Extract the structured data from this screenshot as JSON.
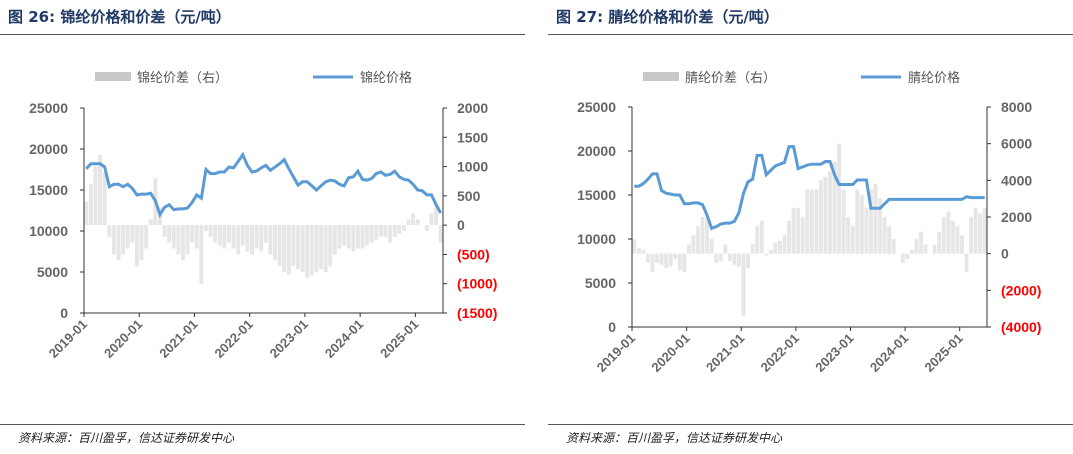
{
  "chart_data": [
    {
      "type": "bar+line",
      "title": "图 26:  锦纶价格和价差（元/吨）",
      "source": "资料来源：百川盈孚，信达证券研发中心",
      "legend": {
        "position": "top",
        "items": [
          {
            "name": "锦纶价差（右）",
            "color": "#c8c8c8",
            "kind": "bar"
          },
          {
            "name": "锦纶价格",
            "color": "#5b9bd5",
            "kind": "line"
          }
        ]
      },
      "x_ticks": [
        "2019-01",
        "2020-01",
        "2021-01",
        "2022-01",
        "2023-01",
        "2024-01",
        "2025-01"
      ],
      "x_start": "2019-01",
      "frequency": "monthly",
      "left_axis": {
        "ylim": [
          0,
          25000
        ],
        "ticks": [
          "25000",
          "20000",
          "15000",
          "10000",
          "5000",
          "0"
        ]
      },
      "right_axis": {
        "ylim": [
          -1500,
          2000
        ],
        "ticks": [
          "2000",
          "1500",
          "1000",
          "500",
          "0",
          "(500)",
          "(1000)",
          "(1500)"
        ],
        "negative_color": "#ff0000"
      },
      "series": [
        {
          "name": "锦纶价格",
          "axis": "left",
          "values": [
            17600,
            18200,
            18200,
            18200,
            17800,
            15400,
            15700,
            15700,
            15400,
            15700,
            15200,
            14400,
            14500,
            14500,
            14600,
            13700,
            12000,
            12900,
            13200,
            12600,
            12700,
            12700,
            12800,
            13500,
            14400,
            14000,
            17500,
            17000,
            17000,
            17200,
            17200,
            17800,
            17700,
            18500,
            19300,
            18000,
            17200,
            17300,
            17700,
            18000,
            17400,
            17800,
            18200,
            18700,
            17600,
            16600,
            15600,
            16000,
            16000,
            15500,
            15000,
            15500,
            16000,
            16200,
            16100,
            15700,
            15500,
            16500,
            16600,
            17300,
            16300,
            16200,
            16400,
            17000,
            17200,
            16800,
            16900,
            17300,
            16600,
            16300,
            16200,
            15700,
            15000,
            14900,
            14400,
            14400,
            13200,
            12200
          ]
        },
        {
          "name": "锦纶价差（右）",
          "axis": "right",
          "values": [
            400,
            700,
            1000,
            1200,
            900,
            -200,
            -500,
            -600,
            -500,
            -400,
            -300,
            -700,
            -600,
            -400,
            100,
            800,
            300,
            -200,
            -300,
            -400,
            -500,
            -600,
            -500,
            -300,
            -400,
            -1000,
            -100,
            -200,
            -300,
            -350,
            -400,
            -300,
            -400,
            -500,
            -350,
            -450,
            -500,
            -400,
            -450,
            -300,
            -500,
            -600,
            -700,
            -800,
            -850,
            -700,
            -750,
            -800,
            -900,
            -850,
            -800,
            -750,
            -800,
            -700,
            -500,
            -400,
            -350,
            -400,
            -450,
            -400,
            -400,
            -350,
            -300,
            -250,
            -200,
            -200,
            -300,
            -200,
            -150,
            -100,
            100,
            200,
            100,
            0,
            -100,
            200,
            300,
            -300
          ]
        }
      ]
    },
    {
      "type": "bar+line",
      "title": "图 27:  腈纶价格和价差（元/吨）",
      "source": "资料来源：百川盈孚，信达证券研发中心",
      "legend": {
        "position": "top",
        "items": [
          {
            "name": "腈纶价差（右）",
            "color": "#c8c8c8",
            "kind": "bar"
          },
          {
            "name": "腈纶价格",
            "color": "#5b9bd5",
            "kind": "line"
          }
        ]
      },
      "x_ticks": [
        "2019-01",
        "2020-01",
        "2021-01",
        "2022-01",
        "2023-01",
        "2024-01",
        "2025-01"
      ],
      "x_start": "2019-01",
      "frequency": "monthly",
      "left_axis": {
        "ylim": [
          0,
          25000
        ],
        "ticks": [
          "25000",
          "20000",
          "15000",
          "10000",
          "5000",
          "0"
        ]
      },
      "right_axis": {
        "ylim": [
          -4000,
          8000
        ],
        "ticks": [
          "8000",
          "6000",
          "4000",
          "2000",
          "0",
          "(2000)",
          "(4000)"
        ],
        "negative_color": "#ff0000"
      },
      "series": [
        {
          "name": "腈纶价格",
          "axis": "left",
          "values": [
            16000,
            16000,
            16300,
            16800,
            17400,
            17400,
            15500,
            15200,
            15100,
            15000,
            15000,
            14000,
            14000,
            14100,
            14100,
            13900,
            12700,
            11200,
            11400,
            11700,
            11800,
            11800,
            12000,
            13000,
            15200,
            16500,
            16800,
            19500,
            19500,
            17300,
            17800,
            18300,
            18500,
            18700,
            20500,
            20500,
            18000,
            18200,
            18400,
            18500,
            18500,
            18500,
            18800,
            18800,
            17300,
            16200,
            16200,
            16200,
            16200,
            16700,
            16700,
            16700,
            13500,
            13500,
            13500,
            14000,
            14500,
            14500,
            14500,
            14500,
            14500,
            14500,
            14500,
            14500,
            14500,
            14500,
            14500,
            14500,
            14500,
            14500,
            14500,
            14500,
            14500,
            14800,
            14700,
            14700,
            14700,
            14700
          ]
        },
        {
          "name": "腈纶价差（右）",
          "axis": "right",
          "values": [
            800,
            300,
            200,
            -500,
            -1000,
            -500,
            -600,
            -800,
            -700,
            -300,
            -900,
            -1000,
            500,
            1000,
            1500,
            2000,
            2000,
            800,
            -500,
            -400,
            500,
            -400,
            -600,
            -700,
            -3400,
            -800,
            500,
            1500,
            1800,
            -100,
            200,
            600,
            700,
            1000,
            1800,
            2500,
            2500,
            2000,
            3500,
            3500,
            3500,
            4000,
            4200,
            4500,
            5000,
            6000,
            3500,
            2000,
            1500,
            3500,
            3200,
            2500,
            3500,
            3800,
            3000,
            2000,
            1500,
            800,
            0,
            -500,
            -300,
            200,
            800,
            1200,
            500,
            0,
            500,
            1200,
            2000,
            2300,
            1800,
            1500,
            1000,
            -1000,
            2000,
            2500,
            2200,
            2500
          ]
        }
      ]
    }
  ]
}
